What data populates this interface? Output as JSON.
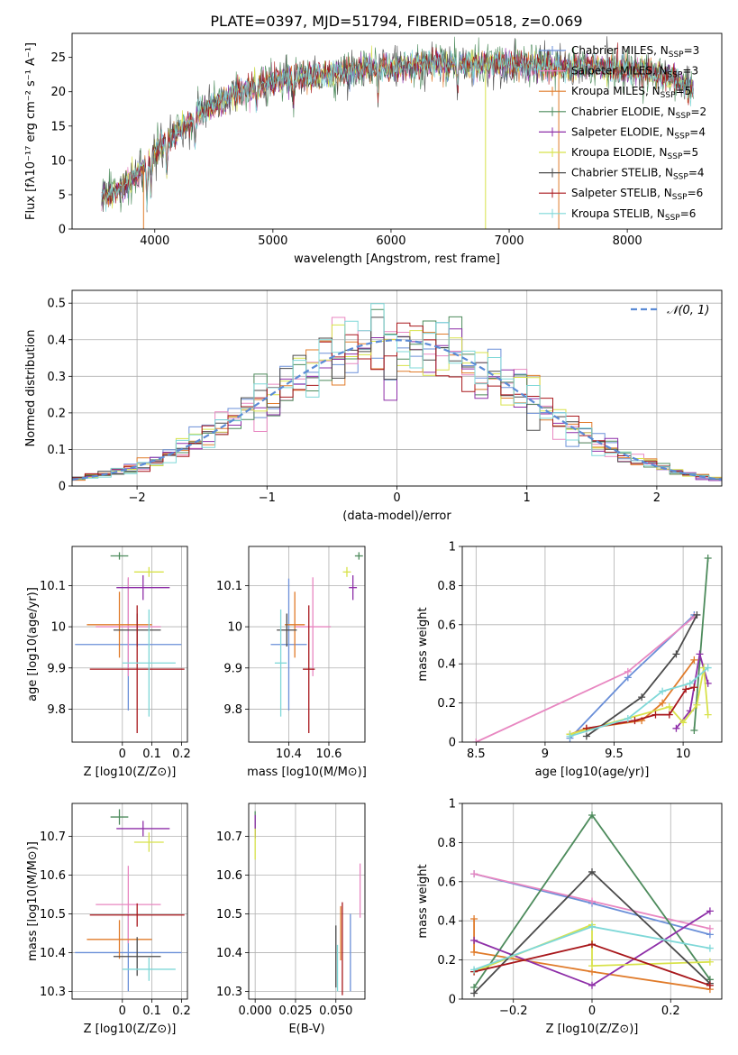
{
  "figure": {
    "title": "PLATE=0397, MJD=51794, FIBERID=0518, z=0.069"
  },
  "colors": {
    "Chabrier MILES": "#6a8fd8",
    "Salpeter MILES": "#e887c1",
    "Kroupa MILES": "#e07b2a",
    "Chabrier ELODIE": "#4d8b5c",
    "Salpeter ELODIE": "#8e2fa8",
    "Kroupa ELODIE": "#d8e24a",
    "Chabrier STELIB": "#4a4a4a",
    "Salpeter STELIB": "#a8171b",
    "Kroupa STELIB": "#7fd8d8"
  },
  "chart_data": [
    {
      "id": "spectrum",
      "type": "line",
      "title": "PLATE=0397, MJD=51794, FIBERID=0518, z=0.069",
      "xlabel": "wavelength [Angstrom, rest frame]",
      "ylabel": "Flux [fλ10⁻¹⁷ erg cm⁻² s⁻¹ A⁻¹]",
      "xlim": [
        3300,
        8800
      ],
      "ylim": [
        0,
        28.5
      ],
      "xticks": [
        4000,
        5000,
        6000,
        7000,
        8000
      ],
      "yticks": [
        0,
        5,
        10,
        15,
        20,
        25
      ],
      "legend_position": "top-right",
      "continuum": {
        "x": [
          3550,
          3650,
          3750,
          3850,
          3950,
          4050,
          4150,
          4250,
          4350,
          4500,
          4650,
          4800,
          5000,
          5200,
          5400,
          5600,
          5800,
          6000,
          6300,
          6600,
          6900,
          7200,
          7500,
          7800,
          8100,
          8400,
          8560
        ],
        "y": [
          5,
          5,
          6.5,
          8,
          10,
          12,
          13.5,
          15,
          16.5,
          18,
          19.5,
          20.5,
          21.5,
          22,
          22.5,
          23,
          23.5,
          23.5,
          24,
          24,
          24,
          24,
          23.5,
          23.5,
          23,
          22,
          20
        ]
      },
      "series": [
        {
          "name": "Chabrier MILES, N_SSP=3",
          "label_main": "Chabrier MILES, N",
          "label_sub": "SSP",
          "label_tail": "=3"
        },
        {
          "name": "Salpeter MILES, N_SSP=3",
          "label_main": "Salpeter MILES, N",
          "label_sub": "SSP",
          "label_tail": "=3"
        },
        {
          "name": "Kroupa MILES, N_SSP=5",
          "label_main": "Kroupa MILES, N",
          "label_sub": "SSP",
          "label_tail": "=5"
        },
        {
          "name": "Chabrier ELODIE, N_SSP=2",
          "label_main": "Chabrier ELODIE, N",
          "label_sub": "SSP",
          "label_tail": "=2"
        },
        {
          "name": "Salpeter ELODIE, N_SSP=4",
          "label_main": "Salpeter ELODIE, N",
          "label_sub": "SSP",
          "label_tail": "=4"
        },
        {
          "name": "Kroupa ELODIE, N_SSP=5",
          "label_main": "Kroupa ELODIE, N",
          "label_sub": "SSP",
          "label_tail": "=5"
        },
        {
          "name": "Chabrier STELIB, N_SSP=4",
          "label_main": "Chabrier STELIB, N",
          "label_sub": "SSP",
          "label_tail": "=4"
        },
        {
          "name": "Salpeter STELIB, N_SSP=6",
          "label_main": "Salpeter STELIB, N",
          "label_sub": "SSP",
          "label_tail": "=6"
        },
        {
          "name": "Kroupa STELIB, N_SSP=6",
          "label_main": "Kroupa STELIB, N",
          "label_sub": "SSP",
          "label_tail": "=6"
        }
      ]
    },
    {
      "id": "residuals",
      "type": "histogram",
      "xlabel": "(data-model)/error",
      "ylabel": "Normed distribution",
      "xlim": [
        -2.5,
        2.5
      ],
      "ylim": [
        0,
        0.535
      ],
      "xticks": [
        -2,
        -1,
        0,
        1,
        2
      ],
      "yticks": [
        0.0,
        0.1,
        0.2,
        0.3,
        0.4,
        0.5
      ],
      "grid": true,
      "legend_position": "top-right",
      "reference_label": "𝒩(0, 1)",
      "reference_curve": "normal(0,1) density"
    },
    {
      "id": "age_vs_Z",
      "type": "scatter",
      "xlabel": "Z [log10(Z/Z⊙)]",
      "ylabel": "age  [log10(age/yr)]",
      "xlim": [
        -0.17,
        0.22
      ],
      "ylim": [
        9.72,
        10.195
      ],
      "xticks": [
        0.0,
        0.1,
        0.2
      ],
      "yticks": [
        9.8,
        9.9,
        10.0,
        10.1
      ],
      "grid": true,
      "points": [
        {
          "name": "Chabrier MILES",
          "x": 0.02,
          "xerr": 0.18,
          "y": 9.957,
          "yerr": 0.16
        },
        {
          "name": "Salpeter MILES",
          "x": 0.02,
          "xerr": 0.11,
          "y": 10.0,
          "yerr": 0.12
        },
        {
          "name": "Kroupa MILES",
          "x": -0.01,
          "xerr": 0.11,
          "y": 10.005,
          "yerr": 0.08
        },
        {
          "name": "Chabrier ELODIE",
          "x": -0.01,
          "xerr": 0.03,
          "y": 10.172,
          "yerr": 0.009
        },
        {
          "name": "Salpeter ELODIE",
          "x": 0.07,
          "xerr": 0.09,
          "y": 10.095,
          "yerr": 0.03
        },
        {
          "name": "Kroupa ELODIE",
          "x": 0.09,
          "xerr": 0.05,
          "y": 10.133,
          "yerr": 0.012
        },
        {
          "name": "Chabrier STELIB",
          "x": 0.05,
          "xerr": 0.08,
          "y": 9.992,
          "yerr": 0.04
        },
        {
          "name": "Salpeter STELIB",
          "x": 0.05,
          "xerr": 0.16,
          "y": 9.897,
          "yerr": 0.155
        },
        {
          "name": "Kroupa STELIB",
          "x": 0.09,
          "xerr": 0.09,
          "y": 9.912,
          "yerr": 0.13
        }
      ]
    },
    {
      "id": "age_vs_mass",
      "type": "scatter",
      "xlabel": "mass [log10(M/M⊙)]",
      "ylabel": "",
      "xlim": [
        10.2,
        10.78
      ],
      "ylim": [
        9.72,
        10.195
      ],
      "xticks": [
        10.4,
        10.6
      ],
      "yticks": [
        9.8,
        9.9,
        10.0,
        10.1
      ],
      "grid": true,
      "points": [
        {
          "name": "Chabrier MILES",
          "x": 10.4,
          "xerr": 0.09,
          "y": 9.957,
          "yerr": 0.16
        },
        {
          "name": "Salpeter MILES",
          "x": 10.52,
          "xerr": 0.09,
          "y": 10.0,
          "yerr": 0.12
        },
        {
          "name": "Kroupa MILES",
          "x": 10.43,
          "xerr": 0.05,
          "y": 10.005,
          "yerr": 0.08
        },
        {
          "name": "Chabrier ELODIE",
          "x": 10.75,
          "xerr": 0.02,
          "y": 10.172,
          "yerr": 0.009
        },
        {
          "name": "Salpeter ELODIE",
          "x": 10.72,
          "xerr": 0.02,
          "y": 10.095,
          "yerr": 0.03
        },
        {
          "name": "Kroupa ELODIE",
          "x": 10.69,
          "xerr": 0.02,
          "y": 10.133,
          "yerr": 0.012
        },
        {
          "name": "Chabrier STELIB",
          "x": 10.39,
          "xerr": 0.05,
          "y": 9.992,
          "yerr": 0.04
        },
        {
          "name": "Salpeter STELIB",
          "x": 10.5,
          "xerr": 0.03,
          "y": 9.897,
          "yerr": 0.155
        },
        {
          "name": "Kroupa STELIB",
          "x": 10.36,
          "xerr": 0.03,
          "y": 9.912,
          "yerr": 0.13
        }
      ]
    },
    {
      "id": "weight_vs_age",
      "type": "line",
      "xlabel": "age  [log10(age/yr)]",
      "ylabel": "mass weight",
      "xlim": [
        8.4,
        10.28
      ],
      "ylim": [
        0,
        1.0
      ],
      "xticks": [
        8.5,
        9.0,
        9.5,
        10.0
      ],
      "yticks": [
        0.0,
        0.2,
        0.4,
        0.6,
        0.8,
        1.0
      ],
      "grid": true,
      "series": [
        {
          "name": "Chabrier MILES",
          "x": [
            9.18,
            9.6,
            10.08
          ],
          "y": [
            0.02,
            0.33,
            0.65
          ]
        },
        {
          "name": "Salpeter MILES",
          "x": [
            8.5,
            9.6,
            10.08
          ],
          "y": [
            0.0,
            0.36,
            0.64
          ]
        },
        {
          "name": "Kroupa MILES",
          "x": [
            9.18,
            9.3,
            9.7,
            9.85,
            10.08
          ],
          "y": [
            0.04,
            0.07,
            0.11,
            0.2,
            0.42
          ]
        },
        {
          "name": "Chabrier ELODIE",
          "x": [
            10.08,
            10.18
          ],
          "y": [
            0.06,
            0.94
          ]
        },
        {
          "name": "Salpeter ELODIE",
          "x": [
            9.95,
            10.05,
            10.12,
            10.18
          ],
          "y": [
            0.07,
            0.16,
            0.45,
            0.3
          ]
        },
        {
          "name": "Kroupa ELODIE",
          "x": [
            9.18,
            9.9,
            10.0,
            10.1,
            10.15,
            10.18
          ],
          "y": [
            0.04,
            0.18,
            0.1,
            0.19,
            0.38,
            0.14
          ]
        },
        {
          "name": "Chabrier STELIB",
          "x": [
            9.3,
            9.7,
            9.95,
            10.1
          ],
          "y": [
            0.03,
            0.23,
            0.45,
            0.65
          ]
        },
        {
          "name": "Salpeter STELIB",
          "x": [
            9.3,
            9.65,
            9.8,
            9.9,
            10.02,
            10.08
          ],
          "y": [
            0.07,
            0.11,
            0.14,
            0.14,
            0.27,
            0.28
          ]
        },
        {
          "name": "Kroupa STELIB",
          "x": [
            9.18,
            9.6,
            9.85,
            10.05,
            10.18
          ],
          "y": [
            0.03,
            0.12,
            0.26,
            0.3,
            0.38
          ]
        }
      ]
    },
    {
      "id": "mass_vs_Z",
      "type": "scatter",
      "xlabel": "Z [log10(Z/Z⊙)]",
      "ylabel": "mass [log10(M/M⊙)]",
      "xlim": [
        -0.17,
        0.22
      ],
      "ylim": [
        10.28,
        10.785
      ],
      "xticks": [
        0.0,
        0.1,
        0.2
      ],
      "yticks": [
        10.3,
        10.4,
        10.5,
        10.6,
        10.7
      ],
      "grid": true,
      "points": [
        {
          "name": "Chabrier MILES",
          "x": 0.02,
          "xerr": 0.18,
          "y": 10.4,
          "yerr": 0.1
        },
        {
          "name": "Salpeter MILES",
          "x": 0.02,
          "xerr": 0.11,
          "y": 10.524,
          "yerr": 0.1
        },
        {
          "name": "Kroupa MILES",
          "x": -0.01,
          "xerr": 0.11,
          "y": 10.434,
          "yerr": 0.05
        },
        {
          "name": "Chabrier ELODIE",
          "x": -0.01,
          "xerr": 0.03,
          "y": 10.75,
          "yerr": 0.02
        },
        {
          "name": "Salpeter ELODIE",
          "x": 0.07,
          "xerr": 0.09,
          "y": 10.72,
          "yerr": 0.02
        },
        {
          "name": "Kroupa ELODIE",
          "x": 0.09,
          "xerr": 0.05,
          "y": 10.685,
          "yerr": 0.025
        },
        {
          "name": "Chabrier STELIB",
          "x": 0.05,
          "xerr": 0.08,
          "y": 10.39,
          "yerr": 0.05
        },
        {
          "name": "Salpeter STELIB",
          "x": 0.05,
          "xerr": 0.16,
          "y": 10.497,
          "yerr": 0.03
        },
        {
          "name": "Kroupa STELIB",
          "x": 0.09,
          "xerr": 0.09,
          "y": 10.357,
          "yerr": 0.03
        }
      ]
    },
    {
      "id": "mass_vs_ebv",
      "type": "scatter",
      "xlabel": "E(B-V)",
      "ylabel": "",
      "xlim": [
        -0.004,
        0.068
      ],
      "ylim": [
        10.28,
        10.785
      ],
      "xticks": [
        0.0,
        0.025,
        0.05
      ],
      "xticklabels": [
        "0.000",
        "0.025",
        "0.050"
      ],
      "yticks": [
        10.3,
        10.4,
        10.5,
        10.6,
        10.7
      ],
      "grid": true,
      "points": [
        {
          "name": "Chabrier MILES",
          "x": 0.059,
          "y": 10.4,
          "yerr": 0.1
        },
        {
          "name": "Salpeter MILES",
          "x": 0.065,
          "y": 10.56,
          "yerr": 0.07
        },
        {
          "name": "Kroupa MILES",
          "x": 0.053,
          "y": 10.45,
          "yerr": 0.07
        },
        {
          "name": "Chabrier ELODIE",
          "x": 0.0,
          "y": 10.73,
          "yerr": 0.035
        },
        {
          "name": "Salpeter ELODIE",
          "x": 0.0,
          "y": 10.725,
          "yerr": 0.03
        },
        {
          "name": "Kroupa ELODIE",
          "x": 0.0,
          "y": 10.68,
          "yerr": 0.04
        },
        {
          "name": "Chabrier STELIB",
          "x": 0.05,
          "y": 10.39,
          "yerr": 0.08
        },
        {
          "name": "Salpeter STELIB",
          "x": 0.054,
          "y": 10.41,
          "yerr": 0.12
        },
        {
          "name": "Kroupa STELIB",
          "x": 0.051,
          "y": 10.36,
          "yerr": 0.06
        }
      ]
    },
    {
      "id": "weight_vs_Z",
      "type": "line",
      "xlabel": "Z [log10(Z/Z⊙)]",
      "ylabel": "mass weight",
      "xlim": [
        -0.33,
        0.33
      ],
      "ylim": [
        0,
        1.0
      ],
      "xticks": [
        -0.2,
        0.0,
        0.2
      ],
      "yticks": [
        0.0,
        0.2,
        0.4,
        0.6,
        0.8,
        1.0
      ],
      "grid": true,
      "series": [
        {
          "name": "Chabrier MILES",
          "x": [
            -0.3,
            0.0,
            0.3
          ],
          "y": [
            0.64,
            0.49,
            0.33
          ]
        },
        {
          "name": "Salpeter MILES",
          "x": [
            -0.3,
            0.0,
            0.3
          ],
          "y": [
            0.64,
            0.5,
            0.36
          ]
        },
        {
          "name": "Kroupa MILES",
          "x": [
            -0.3,
            -0.3,
            0.0,
            0.3
          ],
          "y": [
            0.41,
            0.24,
            0.14,
            0.05
          ]
        },
        {
          "name": "Chabrier ELODIE",
          "x": [
            -0.3,
            0.0,
            0.3
          ],
          "y": [
            0.06,
            0.94,
            0.1
          ]
        },
        {
          "name": "Salpeter ELODIE",
          "x": [
            -0.3,
            0.0,
            0.3
          ],
          "y": [
            0.3,
            0.07,
            0.45
          ]
        },
        {
          "name": "Kroupa ELODIE",
          "x": [
            -0.3,
            0.0,
            0.0,
            0.3
          ],
          "y": [
            0.14,
            0.38,
            0.17,
            0.19
          ]
        },
        {
          "name": "Chabrier STELIB",
          "x": [
            -0.3,
            0.0,
            0.3
          ],
          "y": [
            0.03,
            0.65,
            0.08
          ]
        },
        {
          "name": "Salpeter STELIB",
          "x": [
            -0.3,
            0.0,
            0.3
          ],
          "y": [
            0.14,
            0.28,
            0.07
          ]
        },
        {
          "name": "Kroupa STELIB",
          "x": [
            -0.3,
            0.0,
            0.3
          ],
          "y": [
            0.15,
            0.37,
            0.26
          ]
        }
      ]
    }
  ]
}
